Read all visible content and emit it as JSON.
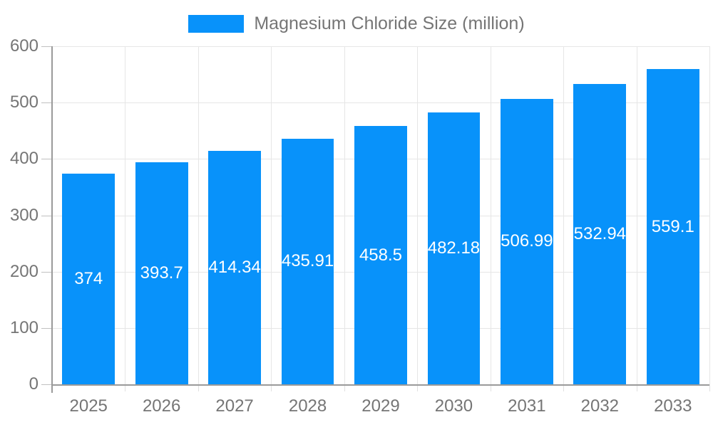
{
  "legend": {
    "items": [
      {
        "label": "Magnesium Chloride Size (million)"
      }
    ]
  },
  "chart_data": {
    "type": "bar",
    "title": "Magnesium Chloride Size (million)",
    "categories": [
      "2025",
      "2026",
      "2027",
      "2028",
      "2029",
      "2030",
      "2031",
      "2032",
      "2033"
    ],
    "series": [
      {
        "name": "Magnesium Chloride Size (million)",
        "values": [
          374,
          393.7,
          414.34,
          435.91,
          458.5,
          482.18,
          506.99,
          532.94,
          559.1
        ]
      }
    ],
    "data_labels": [
      "374",
      "393.7",
      "414.34",
      "435.91",
      "458.5",
      "482.18",
      "506.99",
      "532.94",
      "559.1"
    ],
    "ylim": [
      0,
      600
    ],
    "yticks": [
      0,
      100,
      200,
      300,
      400,
      500,
      600
    ],
    "xlabel": "",
    "ylabel": "",
    "grid": {
      "horizontal": true,
      "vertical": true
    },
    "legend_position": "top",
    "colors": {
      "bar": "#0892fa",
      "bar_label": "#ffffff",
      "grid": "#e6e6e6",
      "axis": "#9a9a9a",
      "y_tick": "#c0c0c0",
      "x_tick": "#e0e0e0",
      "text": "#757575",
      "background": "#ffffff"
    }
  }
}
